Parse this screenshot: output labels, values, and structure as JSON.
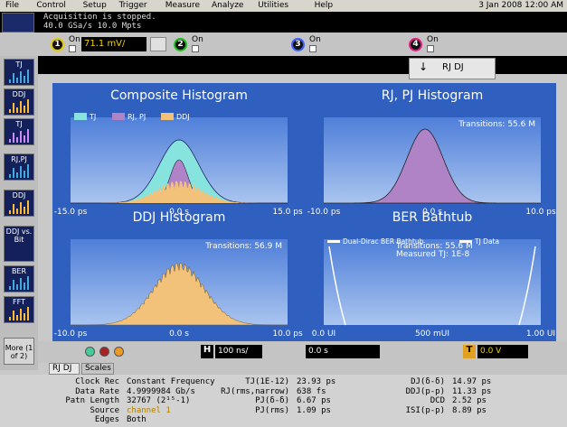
{
  "menu": [
    "File",
    "Control",
    "Setup",
    "Trigger",
    "Measure",
    "Analyze",
    "Utilities",
    "Help"
  ],
  "date": "3 Jan 2008 12:00 AM",
  "status": [
    "Acquisition is stopped.",
    "40.0 GSa/s  10.0 Mpts"
  ],
  "channels": [
    {
      "number": "1",
      "label": "On",
      "scale": "71.1 mV/"
    },
    {
      "number": "2",
      "label": "On"
    },
    {
      "number": "3",
      "label": "On"
    },
    {
      "number": "4",
      "label": "On"
    }
  ],
  "active_tab": "RJ DJ",
  "sidebar": [
    "TJ",
    "DDJ",
    "TJ",
    "RJ,PJ",
    "DDJ",
    "DDJ vs. Bit",
    "BER",
    "FFT",
    "More (1 of 2)"
  ],
  "plots": [
    {
      "title": "Composite Histogram",
      "legend": [
        "TJ",
        "RJ, PJ",
        "DDJ"
      ],
      "xticks": [
        "-15.0 ps",
        "0.0 s",
        "15.0 ps"
      ]
    },
    {
      "title": "RJ, PJ Histogram",
      "annotation": [
        "Transitions: 55.6 M"
      ],
      "xticks": [
        "-10.0 ps",
        "0.0 s",
        "10.0 ps"
      ]
    },
    {
      "title": "DDJ Histogram",
      "annotation": [
        "Transitions: 56.9 M"
      ],
      "xticks": [
        "-10.0 ps",
        "0.0 s",
        "10.0 ps"
      ]
    },
    {
      "title": "BER Bathtub",
      "legend": [
        "Dual-Dirac BER Bathtub",
        "TJ Data"
      ],
      "annotation": [
        "Transitions: 55.6 M",
        "Measured TJ: 1E-8"
      ],
      "xticks": [
        "0.0 UI",
        "500 mUI",
        "1.00 UI"
      ]
    }
  ],
  "controls": {
    "h": "H",
    "horizontal": "100 ns/",
    "position": "0.0 s",
    "t": "T",
    "trigger": "0.0 V"
  },
  "tabs": [
    "RJ DJ",
    "Scales"
  ],
  "measurements": [
    [
      "Clock Rec",
      "Constant Frequency",
      "TJ(1E-12)",
      "23.93 ps",
      "DJ(δ-δ)",
      "14.97 ps"
    ],
    [
      "Data Rate",
      "4.9999984 Gb/s",
      "RJ(rms,narrow)",
      "638 fs",
      "DDJ(p-p)",
      "11.33 ps"
    ],
    [
      "Patn Length",
      "32767 (2¹⁵-1)",
      "PJ(δ-δ)",
      "6.67 ps",
      "DCD",
      "2.52 ps"
    ],
    [
      "Source",
      "channel 1",
      "PJ(rms)",
      "1.09 ps",
      "ISI(p-p)",
      "8.89 ps"
    ],
    [
      "Edges",
      "Both"
    ]
  ]
}
